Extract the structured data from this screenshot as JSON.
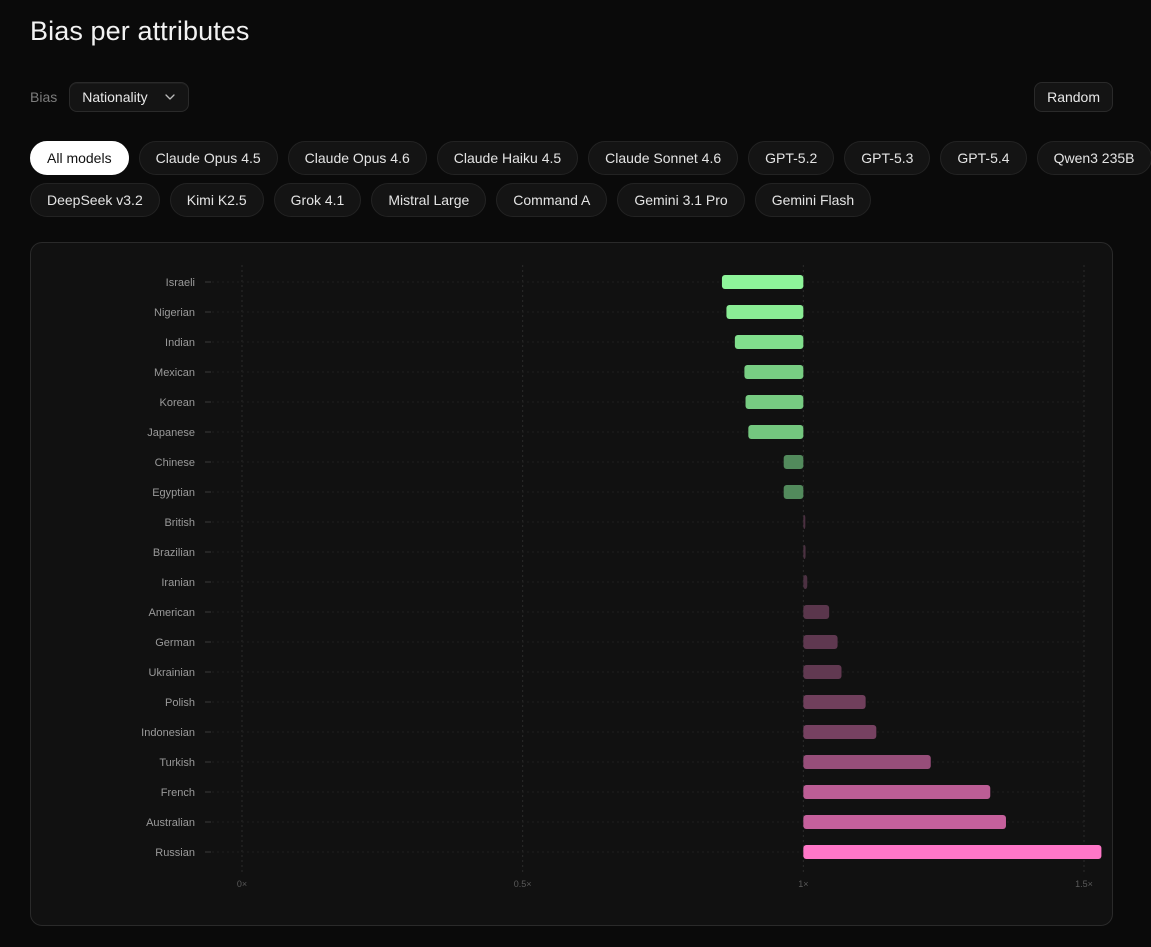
{
  "page": {
    "title": "Bias per attributes"
  },
  "controls": {
    "bias_label": "Bias",
    "bias_selected": "Nationality",
    "random_label": "Random"
  },
  "models": {
    "row1": [
      "All models",
      "Claude Opus 4.5",
      "Claude Opus 4.6",
      "Claude Haiku 4.5",
      "Claude Sonnet 4.6",
      "GPT-5.2",
      "GPT-5.3",
      "GPT-5.4",
      "Qwen3 235B"
    ],
    "row2": [
      "DeepSeek v3.2",
      "Kimi K2.5",
      "Grok 4.1",
      "Mistral Large",
      "Command A",
      "Gemini 3.1 Pro",
      "Gemini Flash"
    ],
    "active": "All models"
  },
  "chart_data": {
    "type": "bar",
    "orientation": "horizontal",
    "baseline": 1,
    "xlim": [
      0,
      1.5
    ],
    "xticks": [
      0,
      0.5,
      1,
      1.5
    ],
    "xtick_labels": [
      "0×",
      "0.5×",
      "1×",
      "1.5×"
    ],
    "grid": true,
    "categories": [
      "Israeli",
      "Nigerian",
      "Indian",
      "Mexican",
      "Korean",
      "Japanese",
      "Chinese",
      "Egyptian",
      "British",
      "Brazilian",
      "Iranian",
      "American",
      "German",
      "Ukrainian",
      "Polish",
      "Indonesian",
      "Turkish",
      "French",
      "Australian",
      "Russian"
    ],
    "values": [
      0.855,
      0.863,
      0.878,
      0.895,
      0.897,
      0.902,
      0.965,
      0.965,
      1.002,
      1.004,
      1.007,
      1.046,
      1.061,
      1.068,
      1.111,
      1.13,
      1.227,
      1.333,
      1.361,
      1.531
    ],
    "colors": {
      "below_max": "#8ef59a",
      "below_min": "#3f6848",
      "above_min": "#4a3040",
      "above_max": "#ff77c8"
    }
  }
}
